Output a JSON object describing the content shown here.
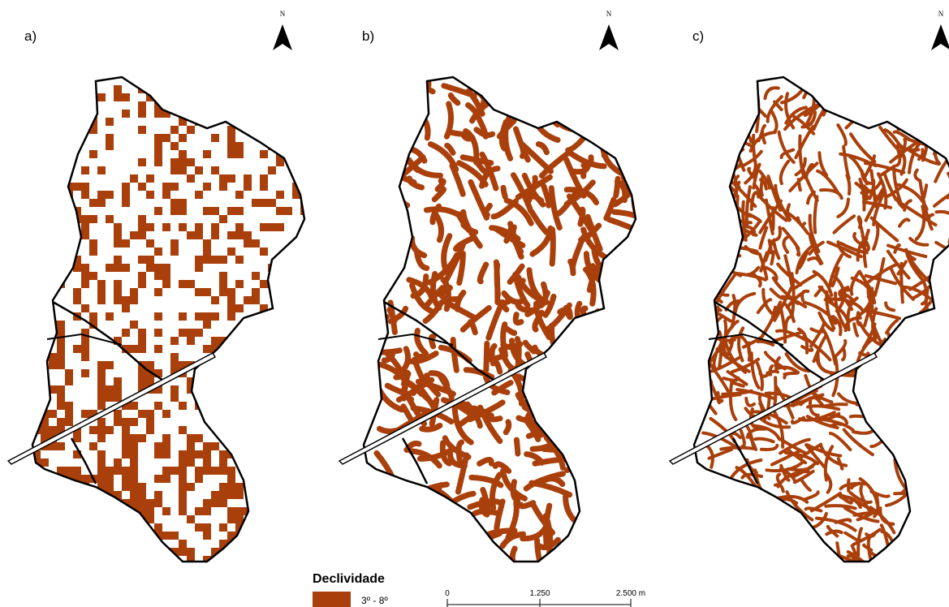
{
  "panels": [
    {
      "label": "a)",
      "north": "N"
    },
    {
      "label": "b)",
      "north": "N"
    },
    {
      "label": "c)",
      "north": "N"
    }
  ],
  "legend": {
    "title": "Declividade",
    "items": [
      {
        "label": "3º - 8º"
      }
    ]
  },
  "scale_bar": {
    "labels": [
      "0",
      "1.250",
      "2.500 m"
    ]
  }
}
